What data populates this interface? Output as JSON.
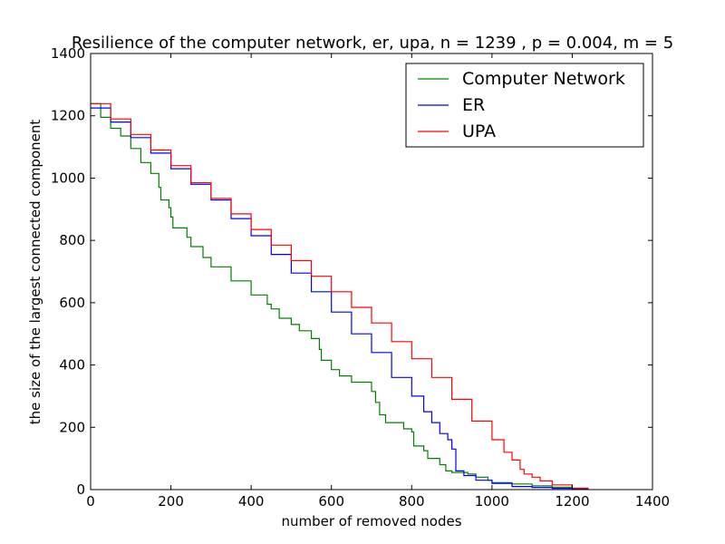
{
  "chart_data": {
    "type": "line",
    "title": "Resilience of the computer network, er, upa, n = 1239 , p = 0.004, m = 5",
    "xlabel": "number of removed nodes",
    "ylabel": "the size of the largest connected component",
    "xlim": [
      0,
      1400
    ],
    "ylim": [
      0,
      1400
    ],
    "xticks": [
      0,
      200,
      400,
      600,
      800,
      1000,
      1200,
      1400
    ],
    "yticks": [
      0,
      200,
      400,
      600,
      800,
      1000,
      1200,
      1400
    ],
    "grid": false,
    "legend_position": "top-right",
    "series": [
      {
        "name": "Computer Network",
        "color": "#008000",
        "points": [
          [
            0,
            1239
          ],
          [
            25,
            1195
          ],
          [
            50,
            1160
          ],
          [
            75,
            1135
          ],
          [
            100,
            1095
          ],
          [
            125,
            1050
          ],
          [
            150,
            1015
          ],
          [
            170,
            970
          ],
          [
            175,
            930
          ],
          [
            195,
            905
          ],
          [
            200,
            875
          ],
          [
            205,
            840
          ],
          [
            240,
            810
          ],
          [
            250,
            780
          ],
          [
            280,
            745
          ],
          [
            300,
            715
          ],
          [
            350,
            670
          ],
          [
            400,
            625
          ],
          [
            440,
            595
          ],
          [
            450,
            580
          ],
          [
            470,
            550
          ],
          [
            500,
            530
          ],
          [
            520,
            510
          ],
          [
            550,
            485
          ],
          [
            570,
            450
          ],
          [
            575,
            415
          ],
          [
            600,
            385
          ],
          [
            620,
            365
          ],
          [
            650,
            345
          ],
          [
            700,
            315
          ],
          [
            710,
            280
          ],
          [
            720,
            240
          ],
          [
            735,
            215
          ],
          [
            780,
            195
          ],
          [
            800,
            185
          ],
          [
            805,
            140
          ],
          [
            830,
            125
          ],
          [
            840,
            100
          ],
          [
            870,
            80
          ],
          [
            885,
            60
          ],
          [
            900,
            55
          ],
          [
            940,
            50
          ],
          [
            960,
            40
          ],
          [
            990,
            30
          ],
          [
            1000,
            22
          ],
          [
            1050,
            18
          ],
          [
            1100,
            12
          ],
          [
            1150,
            8
          ],
          [
            1200,
            3
          ],
          [
            1239,
            0
          ]
        ]
      },
      {
        "name": "ER",
        "color": "#0000ff",
        "points": [
          [
            0,
            1225
          ],
          [
            50,
            1180
          ],
          [
            100,
            1130
          ],
          [
            150,
            1080
          ],
          [
            200,
            1030
          ],
          [
            250,
            980
          ],
          [
            300,
            930
          ],
          [
            350,
            870
          ],
          [
            400,
            815
          ],
          [
            450,
            755
          ],
          [
            500,
            695
          ],
          [
            550,
            635
          ],
          [
            600,
            570
          ],
          [
            650,
            500
          ],
          [
            700,
            440
          ],
          [
            750,
            360
          ],
          [
            800,
            300
          ],
          [
            830,
            250
          ],
          [
            850,
            215
          ],
          [
            870,
            180
          ],
          [
            890,
            160
          ],
          [
            900,
            130
          ],
          [
            910,
            60
          ],
          [
            930,
            45
          ],
          [
            960,
            30
          ],
          [
            1000,
            20
          ],
          [
            1050,
            10
          ],
          [
            1100,
            7
          ],
          [
            1150,
            4
          ],
          [
            1200,
            2
          ],
          [
            1239,
            0
          ]
        ]
      },
      {
        "name": "UPA",
        "color": "#ff0000",
        "points": [
          [
            0,
            1239
          ],
          [
            50,
            1190
          ],
          [
            100,
            1140
          ],
          [
            150,
            1090
          ],
          [
            200,
            1040
          ],
          [
            250,
            985
          ],
          [
            300,
            935
          ],
          [
            350,
            885
          ],
          [
            400,
            835
          ],
          [
            450,
            785
          ],
          [
            500,
            735
          ],
          [
            550,
            685
          ],
          [
            600,
            635
          ],
          [
            650,
            585
          ],
          [
            700,
            535
          ],
          [
            750,
            475
          ],
          [
            800,
            420
          ],
          [
            850,
            360
          ],
          [
            900,
            290
          ],
          [
            950,
            220
          ],
          [
            1000,
            160
          ],
          [
            1030,
            120
          ],
          [
            1050,
            95
          ],
          [
            1070,
            65
          ],
          [
            1080,
            50
          ],
          [
            1100,
            40
          ],
          [
            1120,
            28
          ],
          [
            1150,
            15
          ],
          [
            1200,
            5
          ],
          [
            1239,
            0
          ]
        ]
      }
    ]
  }
}
